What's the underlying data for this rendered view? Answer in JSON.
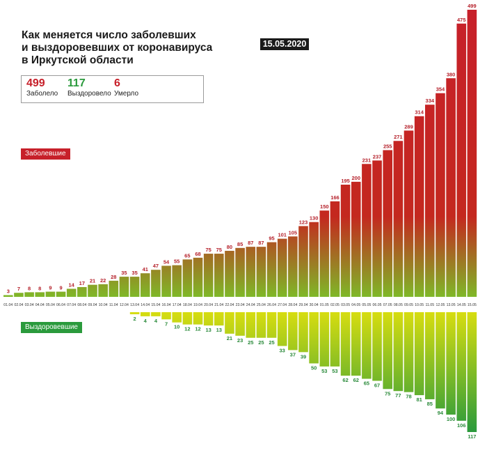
{
  "header": {
    "title_lines": [
      "Как меняется число заболевших",
      "и выздоровевших от коронавируса",
      "в Иркутской области"
    ],
    "date": "15.05.2020"
  },
  "stats": [
    {
      "value": "499",
      "label": "Заболело",
      "color": "#c7202a"
    },
    {
      "value": "117",
      "label": "Выздоровело",
      "color": "#2a9a3c"
    },
    {
      "value": "6",
      "label": "Умерло",
      "color": "#c7202a"
    }
  ],
  "legend": {
    "sick": "Заболевшие",
    "recovered": "Выздоровевшие"
  },
  "colors": {
    "sick_top": "#c7202a",
    "sick_bottom": "#7fb828",
    "rec_top": "#d7dd10",
    "rec_bottom": "#2a9a3c",
    "label_sick": "#b5202a",
    "label_rec": "#2a8a3a"
  },
  "chart_data": {
    "type": "bar",
    "title": "Как меняется число заболевших и выздоровевших от коронавируса в Иркутской области",
    "categories": [
      "01.04",
      "02.04",
      "03.04",
      "04.04",
      "05.04",
      "06.04",
      "07.04",
      "08.04",
      "09.04",
      "10.04",
      "11.04",
      "12.04",
      "13.04",
      "14.04",
      "15.04",
      "16.04",
      "17.04",
      "18.04",
      "19.04",
      "20.04",
      "21.04",
      "22.04",
      "23.04",
      "24.04",
      "25.04",
      "26.04",
      "27.04",
      "28.04",
      "29.04",
      "30.04",
      "01.05",
      "02.05",
      "03.05",
      "04.05",
      "05.05",
      "06.05",
      "07.05",
      "08.05",
      "09.05",
      "10.05",
      "11.05",
      "12.05",
      "13.05",
      "14.05",
      "15.05"
    ],
    "series": [
      {
        "name": "Заболевшие",
        "values": [
          3,
          7,
          8,
          8,
          9,
          9,
          14,
          17,
          21,
          22,
          28,
          35,
          35,
          41,
          47,
          54,
          55,
          65,
          68,
          75,
          75,
          80,
          85,
          87,
          87,
          95,
          101,
          105,
          123,
          130,
          150,
          166,
          195,
          200,
          231,
          237,
          255,
          271,
          289,
          314,
          334,
          354,
          380,
          475,
          499
        ]
      },
      {
        "name": "Выздоровевшие",
        "values": [
          null,
          null,
          null,
          null,
          null,
          null,
          null,
          null,
          null,
          null,
          null,
          null,
          2,
          4,
          4,
          7,
          10,
          12,
          12,
          13,
          13,
          21,
          23,
          25,
          25,
          25,
          33,
          37,
          39,
          50,
          53,
          53,
          62,
          62,
          65,
          67,
          75,
          77,
          78,
          81,
          85,
          94,
          100,
          106,
          117
        ]
      }
    ],
    "xlabel": "",
    "ylabel": "",
    "legend": "top-left"
  }
}
